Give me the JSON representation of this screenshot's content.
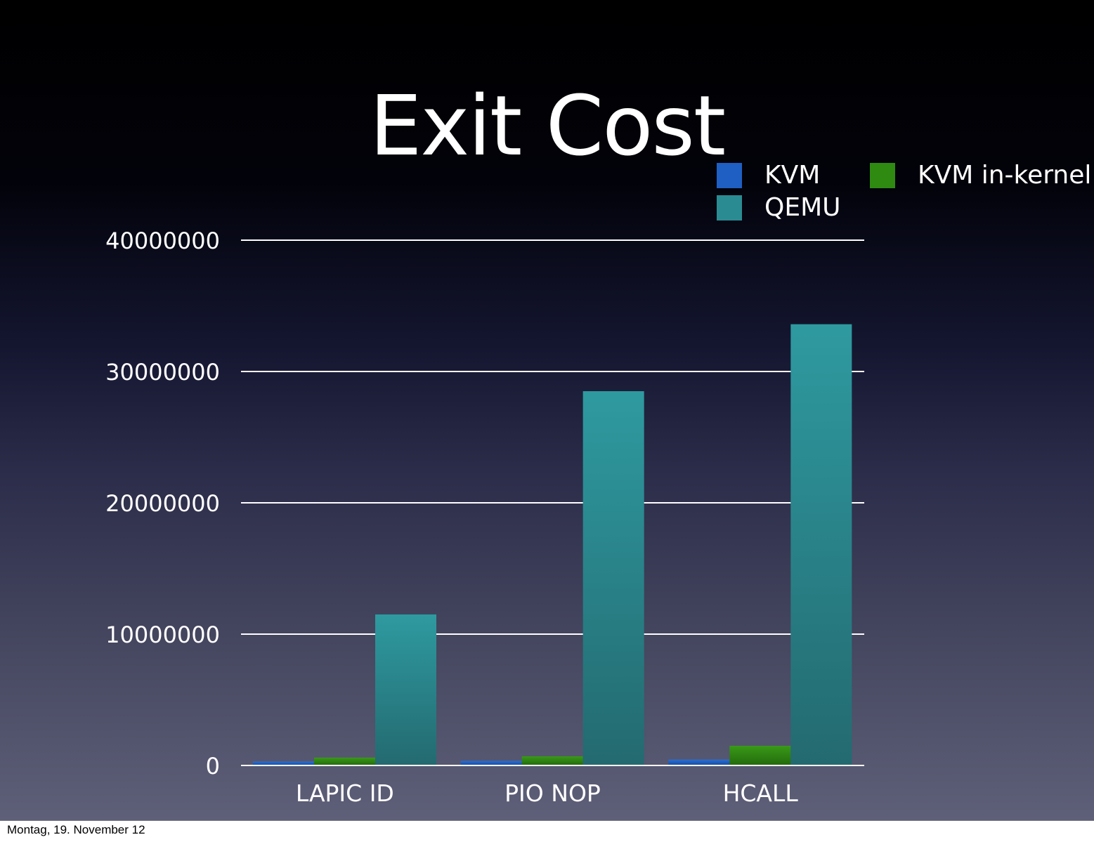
{
  "slide": {
    "title": "Exit Cost",
    "footer": "Montag, 19. November 12"
  },
  "chart_data": {
    "type": "bar",
    "title": "Exit Cost",
    "categories": [
      "LAPIC ID",
      "PIO NOP",
      "HCALL"
    ],
    "series": [
      {
        "name": "KVM",
        "color": "#1f5fc4",
        "values": [
          300000,
          350000,
          450000
        ]
      },
      {
        "name": "KVM in-kernel",
        "color": "#2f8a12",
        "values": [
          600000,
          700000,
          1500000
        ]
      },
      {
        "name": "QEMU",
        "color": "#2a8c92",
        "values": [
          11500000,
          28500000,
          33600000
        ]
      }
    ],
    "y_ticks": [
      "0",
      "10000000",
      "20000000",
      "30000000",
      "40000000"
    ],
    "ylim": [
      0,
      40000000
    ],
    "grid": true,
    "legend_position": "top-right"
  }
}
